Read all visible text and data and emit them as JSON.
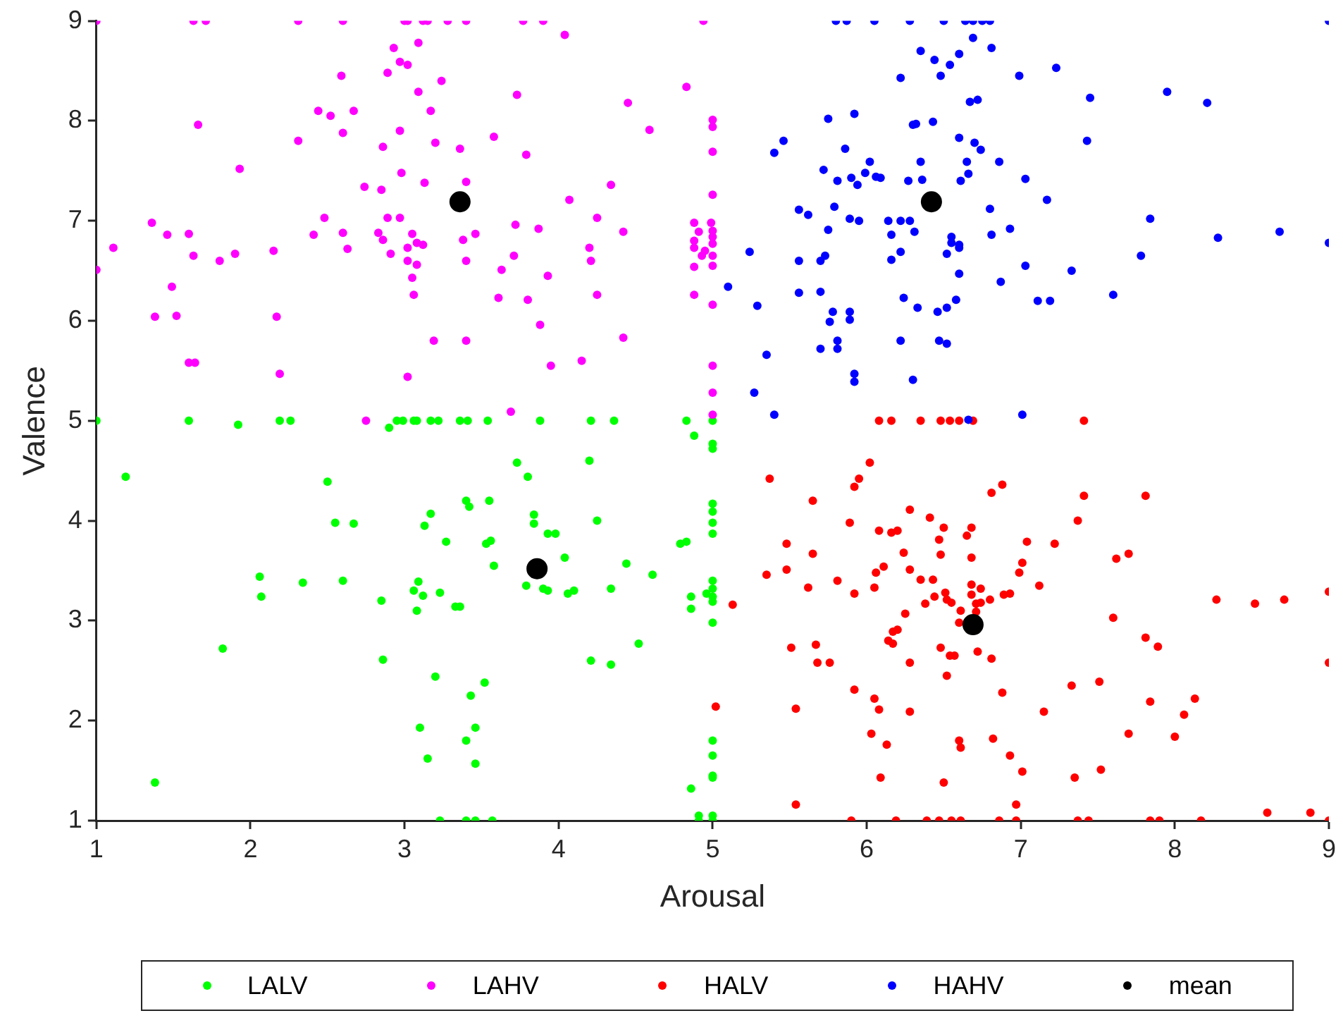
{
  "chart_data": {
    "type": "scatter",
    "xlabel": "Arousal",
    "ylabel": "Valence",
    "xlim": [
      1,
      9
    ],
    "ylim": [
      1,
      9
    ],
    "xticks": [
      1,
      2,
      3,
      4,
      5,
      6,
      7,
      8,
      9
    ],
    "yticks": [
      1,
      2,
      3,
      4,
      5,
      6,
      7,
      8,
      9
    ],
    "grid": false,
    "legend": "bottom",
    "marker": "circle",
    "series": [
      {
        "name": "LALV",
        "color": "#00ff00",
        "x": [
          1,
          1.6,
          1.92,
          2.19,
          2.26,
          2.9,
          2.95,
          2.99,
          3.06,
          3.08,
          3.17,
          3.22,
          3.36,
          3.41,
          3.54,
          3.88,
          4.21,
          4.36,
          4.83,
          5,
          4.88,
          5,
          5,
          1.19,
          2.5,
          3.73,
          3.8,
          4.2,
          2.55,
          2.67,
          3.13,
          3.17,
          3.27,
          3.4,
          3.42,
          3.55,
          3.53,
          3.56,
          3.58,
          3.84,
          3.84,
          3.93,
          3.98,
          4.04,
          4.25,
          4.44,
          4.61,
          4.79,
          4.83,
          5,
          5,
          5,
          5,
          2.06,
          2.07,
          2.34,
          2.6,
          2.85,
          3.06,
          3.09,
          3.12,
          3.23,
          3.08,
          3.33,
          3.36,
          3.79,
          3.9,
          3.93,
          4.06,
          4.1,
          4.34,
          4.86,
          4.86,
          4.96,
          5,
          5,
          5,
          5,
          5,
          1.82,
          2.86,
          3.2,
          3.43,
          3.52,
          4.21,
          4.34,
          4.52,
          3.1,
          3.46,
          3.4,
          3.15,
          3.46,
          1.38,
          4.86,
          5,
          5,
          5,
          5,
          3.23,
          3.4,
          3.46,
          3.57,
          4.91,
          4.91,
          5,
          5
        ],
        "values": [
          5,
          5,
          4.96,
          5,
          5,
          4.93,
          5,
          5,
          5,
          5,
          5,
          5,
          5,
          5,
          5,
          5,
          5,
          5,
          5,
          5,
          4.85,
          4.77,
          4.72,
          4.44,
          4.39,
          4.58,
          4.44,
          4.6,
          3.98,
          3.97,
          3.95,
          4.07,
          3.79,
          4.2,
          4.14,
          4.2,
          3.77,
          3.8,
          3.55,
          4.06,
          3.97,
          3.87,
          3.87,
          3.63,
          4,
          3.57,
          3.46,
          3.77,
          3.79,
          4.17,
          4.09,
          3.98,
          3.87,
          3.44,
          3.24,
          3.38,
          3.4,
          3.2,
          3.3,
          3.39,
          3.25,
          3.28,
          3.1,
          3.14,
          3.14,
          3.35,
          3.32,
          3.3,
          3.27,
          3.3,
          3.32,
          3.24,
          3.12,
          3.27,
          3.4,
          3.32,
          3.24,
          3.19,
          2.98,
          2.72,
          2.61,
          2.44,
          2.25,
          2.38,
          2.6,
          2.56,
          2.77,
          1.93,
          1.93,
          1.8,
          1.62,
          1.57,
          1.38,
          1.32,
          1.8,
          1.65,
          1.45,
          1.43,
          1,
          1,
          1,
          1,
          1.05,
          1,
          1.05,
          1
        ]
      },
      {
        "name": "LAHV",
        "color": "#ff00ff",
        "x": [
          1,
          1.63,
          1.71,
          2.31,
          2.6,
          3,
          3.02,
          3.12,
          3.15,
          3.28,
          3.4,
          3.77,
          3.9,
          4.04,
          4.94,
          3.09,
          2.93,
          2.97,
          3.02,
          2.59,
          2.89,
          3.24,
          3.09,
          3.73,
          4.83,
          4.45,
          2.44,
          2.52,
          2.67,
          3.17,
          1.66,
          2.6,
          2.97,
          2.31,
          2.86,
          3.2,
          3.36,
          3.58,
          4.59,
          3.79,
          1.93,
          2.98,
          2.74,
          3.13,
          3.4,
          2.85,
          4.34,
          4.07,
          1.36,
          2.48,
          2.89,
          2.97,
          4.25,
          1.46,
          1.6,
          2.41,
          2.6,
          2.83,
          2.86,
          3.05,
          3.08,
          3.12,
          3.38,
          3.46,
          3.72,
          3.87,
          4.42,
          1.11,
          1.63,
          1.8,
          1.9,
          2.15,
          2.63,
          2.91,
          3.02,
          3.02,
          3.08,
          3.4,
          3.71,
          3.63,
          4.2,
          4.21,
          1,
          1.49,
          3.05,
          3.06,
          3.61,
          3.8,
          3.93,
          4.25,
          1.38,
          1.52,
          2.17,
          3.88,
          3.19,
          3.4,
          4.42,
          1.6,
          1.64,
          2.19,
          3.02,
          3.95,
          4.15,
          2.75,
          3.69,
          5,
          5,
          5,
          5,
          4.88,
          4.99,
          5,
          4.91,
          5,
          4.88,
          5,
          4.88,
          4.95,
          5,
          4.93,
          5,
          4.88,
          4.88,
          5,
          5,
          5,
          5
        ],
        "values": [
          9,
          9,
          9,
          9,
          9,
          9,
          9,
          9,
          9,
          9,
          9,
          9,
          9,
          8.86,
          9,
          8.78,
          8.73,
          8.59,
          8.56,
          8.45,
          8.48,
          8.4,
          8.29,
          8.26,
          8.34,
          8.18,
          8.1,
          8.05,
          8.1,
          8.1,
          7.96,
          7.88,
          7.9,
          7.8,
          7.74,
          7.78,
          7.72,
          7.84,
          7.91,
          7.66,
          7.52,
          7.48,
          7.34,
          7.38,
          7.39,
          7.31,
          7.36,
          7.21,
          6.98,
          7.03,
          7.03,
          7.03,
          7.03,
          6.86,
          6.87,
          6.86,
          6.88,
          6.88,
          6.81,
          6.87,
          6.78,
          6.76,
          6.81,
          6.87,
          6.96,
          6.92,
          6.89,
          6.73,
          6.65,
          6.6,
          6.67,
          6.7,
          6.72,
          6.67,
          6.73,
          6.6,
          6.56,
          6.6,
          6.65,
          6.51,
          6.73,
          6.6,
          6.51,
          6.34,
          6.43,
          6.26,
          6.23,
          6.21,
          6.45,
          6.26,
          6.04,
          6.05,
          6.04,
          5.96,
          5.8,
          5.8,
          5.83,
          5.58,
          5.58,
          5.47,
          5.44,
          5.55,
          5.6,
          5,
          5.09,
          8.01,
          7.94,
          7.69,
          7.26,
          6.98,
          6.98,
          6.9,
          6.89,
          6.84,
          6.8,
          6.77,
          6.73,
          6.7,
          6.65,
          6.65,
          6.55,
          6.54,
          6.26,
          6.16,
          5.55,
          5.28,
          5.06
        ]
      },
      {
        "name": "HALV",
        "color": "#ff0000",
        "x": [
          6.08,
          6.16,
          6.35,
          6.48,
          6.54,
          6.6,
          6.69,
          7.41,
          6.02,
          5.37,
          5.95,
          5.92,
          6.81,
          6.88,
          7.41,
          7.81,
          5.65,
          6.28,
          6.41,
          5.89,
          6.08,
          6.16,
          6.2,
          6.5,
          6.68,
          6.65,
          6.47,
          7.37,
          5.48,
          5.65,
          6.24,
          6.48,
          6.68,
          7.04,
          7.22,
          7.62,
          7.7,
          5.35,
          5.48,
          6.11,
          6.06,
          6.28,
          5.81,
          5.62,
          5.92,
          6.05,
          6.35,
          6.43,
          7.01,
          6.99,
          7.12,
          6.68,
          6.74,
          6.51,
          6.44,
          6.52,
          6.55,
          6.38,
          6.68,
          6.71,
          6.74,
          6.8,
          6.89,
          6.93,
          6.61,
          6.71,
          6.25,
          6.6,
          7.6,
          8.27,
          8.52,
          8.71,
          9,
          6.17,
          6.2,
          6.14,
          6.17,
          5.51,
          5.67,
          5.68,
          5.76,
          6.28,
          6.48,
          6.54,
          6.57,
          6.72,
          6.81,
          6.52,
          7.81,
          7.89,
          9,
          5.92,
          6.05,
          6.08,
          6.28,
          5.54,
          6.88,
          7.33,
          7.51,
          7.15,
          7.84,
          8.13,
          8.06,
          6.03,
          6.13,
          6.6,
          6.61,
          6.82,
          6.93,
          7.7,
          8,
          6.09,
          6.5,
          7.01,
          7.35,
          7.52,
          5.54,
          6.97,
          8.6,
          8.88,
          5.9,
          6.19,
          6.39,
          6.47,
          6.55,
          6.61,
          6.86,
          6.97,
          7.37,
          7.44,
          7.84,
          7.9,
          8.17,
          9,
          5.13,
          5.02
        ],
        "values": [
          5,
          5,
          5,
          5,
          5,
          5,
          5,
          5,
          4.58,
          4.42,
          4.42,
          4.34,
          4.28,
          4.36,
          4.25,
          4.25,
          4.2,
          4.11,
          4.03,
          3.98,
          3.9,
          3.88,
          3.9,
          3.93,
          3.93,
          3.85,
          3.81,
          4,
          3.77,
          3.67,
          3.68,
          3.66,
          3.63,
          3.79,
          3.77,
          3.62,
          3.67,
          3.46,
          3.51,
          3.54,
          3.48,
          3.51,
          3.4,
          3.33,
          3.27,
          3.33,
          3.41,
          3.41,
          3.58,
          3.48,
          3.35,
          3.36,
          3.32,
          3.28,
          3.24,
          3.21,
          3.18,
          3.17,
          3.26,
          3.17,
          3.18,
          3.21,
          3.26,
          3.27,
          3.1,
          3.09,
          3.07,
          2.98,
          3.03,
          3.21,
          3.17,
          3.21,
          3.29,
          2.89,
          2.91,
          2.8,
          2.77,
          2.73,
          2.76,
          2.58,
          2.58,
          2.58,
          2.73,
          2.65,
          2.65,
          2.69,
          2.62,
          2.45,
          2.83,
          2.74,
          2.58,
          2.31,
          2.22,
          2.11,
          2.09,
          2.12,
          2.28,
          2.35,
          2.39,
          2.09,
          2.19,
          2.22,
          2.06,
          1.87,
          1.76,
          1.8,
          1.73,
          1.82,
          1.65,
          1.87,
          1.84,
          1.43,
          1.38,
          1.49,
          1.43,
          1.51,
          1.16,
          1.16,
          1.08,
          1.08,
          1,
          1,
          1,
          1,
          1,
          1,
          1,
          1,
          1,
          1,
          1,
          1,
          1,
          1,
          3.16,
          2.14
        ]
      },
      {
        "name": "HAHV",
        "color": "#0000ff",
        "x": [
          5.8,
          5.87,
          6.05,
          6.28,
          6.5,
          6.64,
          6.69,
          6.75,
          6.8,
          9,
          6.69,
          6.81,
          6.35,
          6.44,
          6.6,
          6.54,
          6.48,
          6.22,
          6.99,
          7.23,
          7.95,
          8.21,
          7.45,
          6.67,
          6.72,
          5.75,
          5.92,
          6.3,
          6.32,
          6.43,
          5.46,
          5.4,
          5.86,
          6.6,
          6.7,
          6.74,
          7.43,
          6.02,
          6.35,
          6.65,
          6.86,
          5.72,
          5.99,
          5.9,
          5.81,
          5.94,
          6.06,
          6.09,
          6.27,
          6.36,
          6.61,
          6.66,
          7.03,
          7.17,
          5.56,
          5.62,
          5.79,
          5.89,
          5.95,
          6.14,
          6.22,
          6.28,
          6.8,
          7.84,
          5.75,
          6.16,
          6.31,
          6.55,
          6.55,
          6.6,
          6.6,
          6.81,
          6.93,
          8.28,
          8.68,
          9,
          5.24,
          5.56,
          5.7,
          5.73,
          6.16,
          6.22,
          6.52,
          6.6,
          7.03,
          7.33,
          7.78,
          5.1,
          5.29,
          5.56,
          5.7,
          5.78,
          5.89,
          5.89,
          5.76,
          6.24,
          6.33,
          6.46,
          6.52,
          6.58,
          6.87,
          7.11,
          7.19,
          7.6,
          5.35,
          5.7,
          5.81,
          5.81,
          6.22,
          6.47,
          6.52,
          5.92,
          5.92,
          6.3,
          5.27,
          5.4,
          7.01,
          6.66
        ],
        "values": [
          9,
          9,
          9,
          9,
          9,
          9,
          9,
          9,
          9,
          9,
          8.83,
          8.73,
          8.7,
          8.61,
          8.67,
          8.56,
          8.45,
          8.43,
          8.45,
          8.53,
          8.29,
          8.18,
          8.23,
          8.19,
          8.21,
          8.02,
          8.07,
          7.96,
          7.97,
          7.99,
          7.8,
          7.68,
          7.72,
          7.83,
          7.78,
          7.71,
          7.8,
          7.59,
          7.59,
          7.59,
          7.59,
          7.51,
          7.48,
          7.43,
          7.4,
          7.36,
          7.44,
          7.43,
          7.4,
          7.41,
          7.4,
          7.47,
          7.42,
          7.21,
          7.11,
          7.06,
          7.14,
          7.02,
          7,
          7,
          7,
          7,
          7.12,
          7.02,
          6.91,
          6.86,
          6.89,
          6.84,
          6.78,
          6.76,
          6.73,
          6.86,
          6.92,
          6.83,
          6.89,
          6.78,
          6.69,
          6.6,
          6.6,
          6.65,
          6.61,
          6.69,
          6.67,
          6.47,
          6.55,
          6.5,
          6.65,
          6.34,
          6.15,
          6.28,
          6.29,
          6.09,
          6.09,
          6.01,
          5.99,
          6.23,
          6.13,
          6.09,
          6.13,
          6.21,
          6.39,
          6.2,
          6.2,
          6.26,
          5.66,
          5.72,
          5.8,
          5.72,
          5.8,
          5.8,
          5.77,
          5.47,
          5.39,
          5.41,
          5.28,
          5.06,
          5.06,
          5.01
        ]
      },
      {
        "name": "mean",
        "color": "#000000",
        "x": [
          3.86,
          3.36,
          6.69,
          6.42
        ],
        "values": [
          3.52,
          7.19,
          2.96,
          7.19
        ]
      }
    ]
  }
}
